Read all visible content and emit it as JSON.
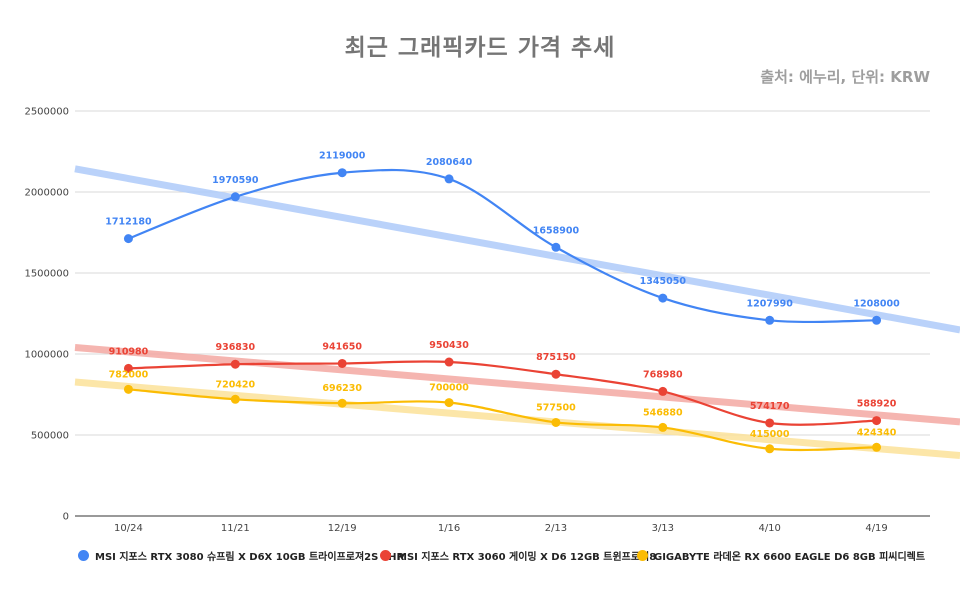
{
  "chart_data": {
    "type": "line",
    "title": "최근 그래픽카드 가격 추세",
    "subtitle": "출처: 에누리, 단위: KRW",
    "categories": [
      "10/24",
      "11/21",
      "12/19",
      "1/16",
      "2/13",
      "3/13",
      "4/10",
      "4/19"
    ],
    "yticks": [
      "0",
      "500000",
      "1000000",
      "1500000",
      "2000000",
      "2500000"
    ],
    "ylim": [
      0,
      2500000
    ],
    "grid": true,
    "legend_position": "bottom",
    "trendlines": true,
    "series": [
      {
        "name": "MSI 지포스 RTX 3080 슈프림 X D6X 10GB 트라이프로져2S LHR",
        "color": "#4285f4",
        "trend_color": "#aecbfa",
        "values": [
          1712180,
          1970590,
          2119000,
          2080640,
          1658900,
          1345050,
          1207990,
          1208000
        ],
        "labels": [
          "1712180",
          "1970590",
          "2119000",
          "2080640",
          "1658900",
          "1345050",
          "1207990",
          "1208000"
        ]
      },
      {
        "name": "MSI 지포스 RTX 3060 게이밍 X D6 12GB 트윈프로져8",
        "color": "#ea4335",
        "trend_color": "#f4a9a3",
        "values": [
          910980,
          936830,
          941650,
          950430,
          875150,
          768980,
          574170,
          588920
        ],
        "labels": [
          "910980",
          "936830",
          "941650",
          "950430",
          "875150",
          "768980",
          "574170",
          "588920"
        ]
      },
      {
        "name": "GIGABYTE 라데온 RX 6600 EAGLE D6 8GB 피씨디렉트",
        "color": "#fbbc04",
        "trend_color": "#fce29a",
        "values": [
          782000,
          720420,
          696230,
          700000,
          577500,
          546880,
          415000,
          424340
        ],
        "labels": [
          "782000",
          "720420",
          "696230",
          "700000",
          "577500",
          "546880",
          "415000",
          "424340"
        ]
      }
    ]
  }
}
